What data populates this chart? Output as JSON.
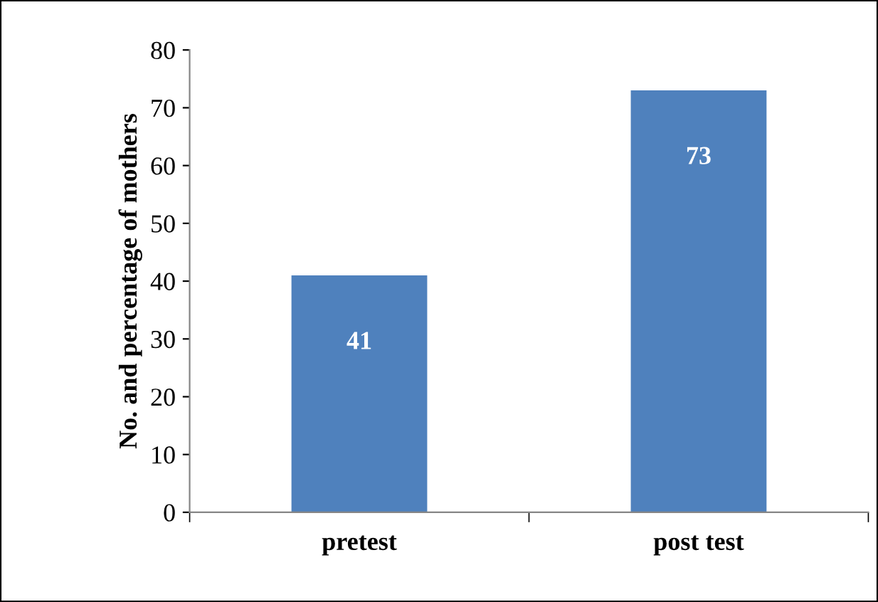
{
  "chart_data": {
    "type": "bar",
    "ylabel": "No. and percentage of mothers",
    "categories": [
      "pretest",
      "post test"
    ],
    "values": [
      41,
      73
    ],
    "color": "#4f81bd",
    "ylim": [
      0,
      80
    ],
    "yticks": [
      0,
      10,
      20,
      30,
      40,
      50,
      60,
      70,
      80
    ],
    "data_labels": true,
    "grid": false
  }
}
